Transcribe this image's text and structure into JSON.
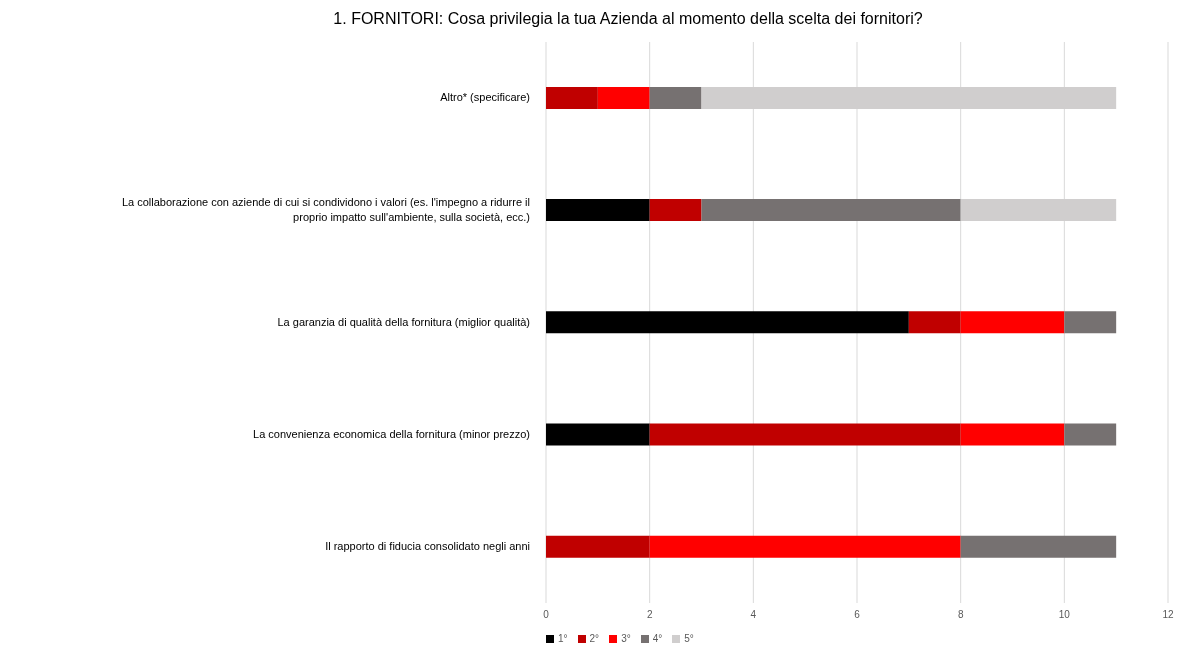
{
  "chart_data": {
    "type": "bar",
    "orientation": "horizontal",
    "stacked": true,
    "title": "1. FORNITORI: Cosa privilegia la tua Azienda al momento della scelta dei fornitori?",
    "categories": [
      "Altro* (specificare)",
      "La collaborazione con aziende di cui si condividono i valori (es. l'impegno a ridurre il proprio impatto sull'ambiente, sulla società, ecc.)",
      "La garanzia di qualità della fornitura (miglior qualità)",
      "La convenienza economica della fornitura (minor prezzo)",
      "Il rapporto di fiducia consolidato negli anni"
    ],
    "series": [
      {
        "name": "1°",
        "color": "#000000",
        "values": [
          0,
          2,
          7,
          2,
          0
        ]
      },
      {
        "name": "2°",
        "color": "#c00000",
        "values": [
          1,
          1,
          1,
          6,
          2
        ]
      },
      {
        "name": "3°",
        "color": "#ff0000",
        "values": [
          1,
          0,
          2,
          2,
          6
        ]
      },
      {
        "name": "4°",
        "color": "#767171",
        "values": [
          1,
          5,
          1,
          1,
          3
        ]
      },
      {
        "name": "5°",
        "color": "#d0cece",
        "values": [
          8,
          3,
          0,
          0,
          0
        ]
      }
    ],
    "xlim": [
      0,
      12
    ],
    "xticks": [
      0,
      2,
      4,
      6,
      8,
      10,
      12
    ],
    "grid": "x",
    "legend": "bottom"
  }
}
